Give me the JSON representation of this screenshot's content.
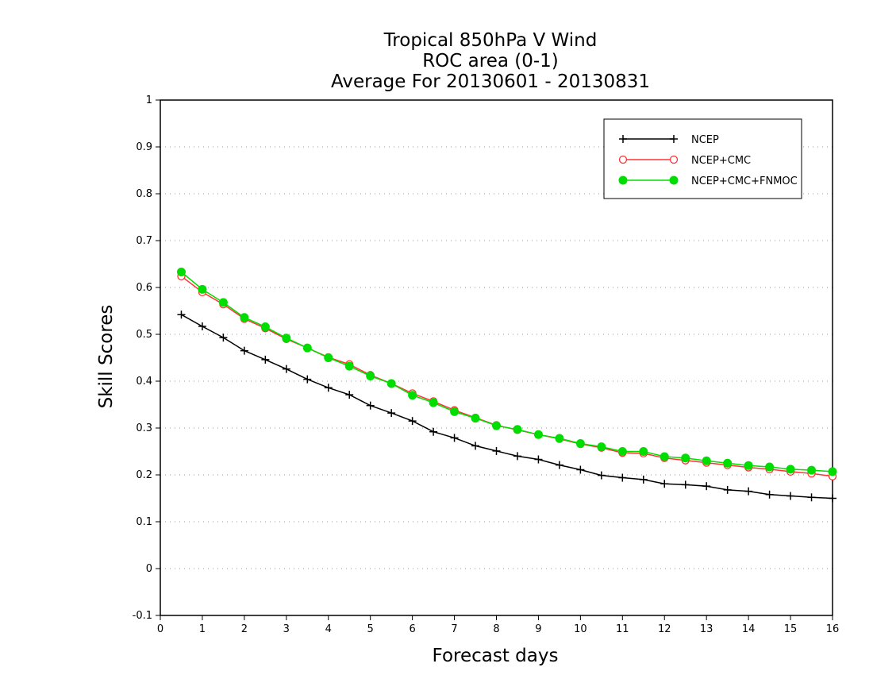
{
  "chart_data": {
    "type": "line",
    "title": [
      "Tropical 850hPa V Wind",
      "ROC area (0-1)",
      "Average For 20130601 - 20130831"
    ],
    "xlabel": "Forecast days",
    "ylabel": "Skill Scores",
    "xlim": [
      0,
      16
    ],
    "ylim": [
      -0.1,
      1
    ],
    "xticks": [
      "0",
      "1",
      "2",
      "3",
      "4",
      "5",
      "6",
      "7",
      "8",
      "9",
      "10",
      "11",
      "12",
      "13",
      "14",
      "15",
      "16"
    ],
    "yticks": [
      "-0.1",
      "0",
      "0.1",
      "0.2",
      "0.3",
      "0.4",
      "0.5",
      "0.6",
      "0.7",
      "0.8",
      "0.9",
      "1"
    ],
    "grid": true,
    "legend_position": "top-right",
    "x": [
      0.5,
      1,
      1.5,
      2,
      2.5,
      3,
      3.5,
      4,
      4.5,
      5,
      5.5,
      6,
      6.5,
      7,
      7.5,
      8,
      8.5,
      9,
      9.5,
      10,
      10.5,
      11,
      11.5,
      12,
      12.5,
      13,
      13.5,
      14,
      14.5,
      15,
      15.5,
      16
    ],
    "series": [
      {
        "name": "NCEP",
        "color": "#000000",
        "marker": "plus",
        "values": [
          0.542,
          0.517,
          0.493,
          0.465,
          0.446,
          0.426,
          0.404,
          0.386,
          0.371,
          0.348,
          0.332,
          0.315,
          0.292,
          0.279,
          0.262,
          0.251,
          0.24,
          0.233,
          0.221,
          0.211,
          0.199,
          0.194,
          0.19,
          0.181,
          0.179,
          0.176,
          0.168,
          0.165,
          0.158,
          0.155,
          0.152,
          0.15
        ]
      },
      {
        "name": "NCEP+CMC",
        "color": "#ff3333",
        "marker": "open-circle",
        "values": [
          0.624,
          0.59,
          0.564,
          0.533,
          0.513,
          0.49,
          0.471,
          0.451,
          0.436,
          0.413,
          0.395,
          0.374,
          0.357,
          0.338,
          0.322,
          0.306,
          0.296,
          0.286,
          0.277,
          0.266,
          0.258,
          0.247,
          0.246,
          0.236,
          0.231,
          0.226,
          0.221,
          0.216,
          0.212,
          0.207,
          0.203,
          0.197
        ]
      },
      {
        "name": "NCEP+CMC+FNMOC",
        "color": "#00dd00",
        "marker": "filled-circle",
        "values": [
          0.633,
          0.596,
          0.568,
          0.536,
          0.516,
          0.492,
          0.471,
          0.45,
          0.432,
          0.411,
          0.395,
          0.37,
          0.354,
          0.335,
          0.321,
          0.305,
          0.297,
          0.286,
          0.278,
          0.267,
          0.26,
          0.25,
          0.25,
          0.239,
          0.236,
          0.23,
          0.225,
          0.22,
          0.217,
          0.212,
          0.21,
          0.207
        ]
      }
    ]
  }
}
